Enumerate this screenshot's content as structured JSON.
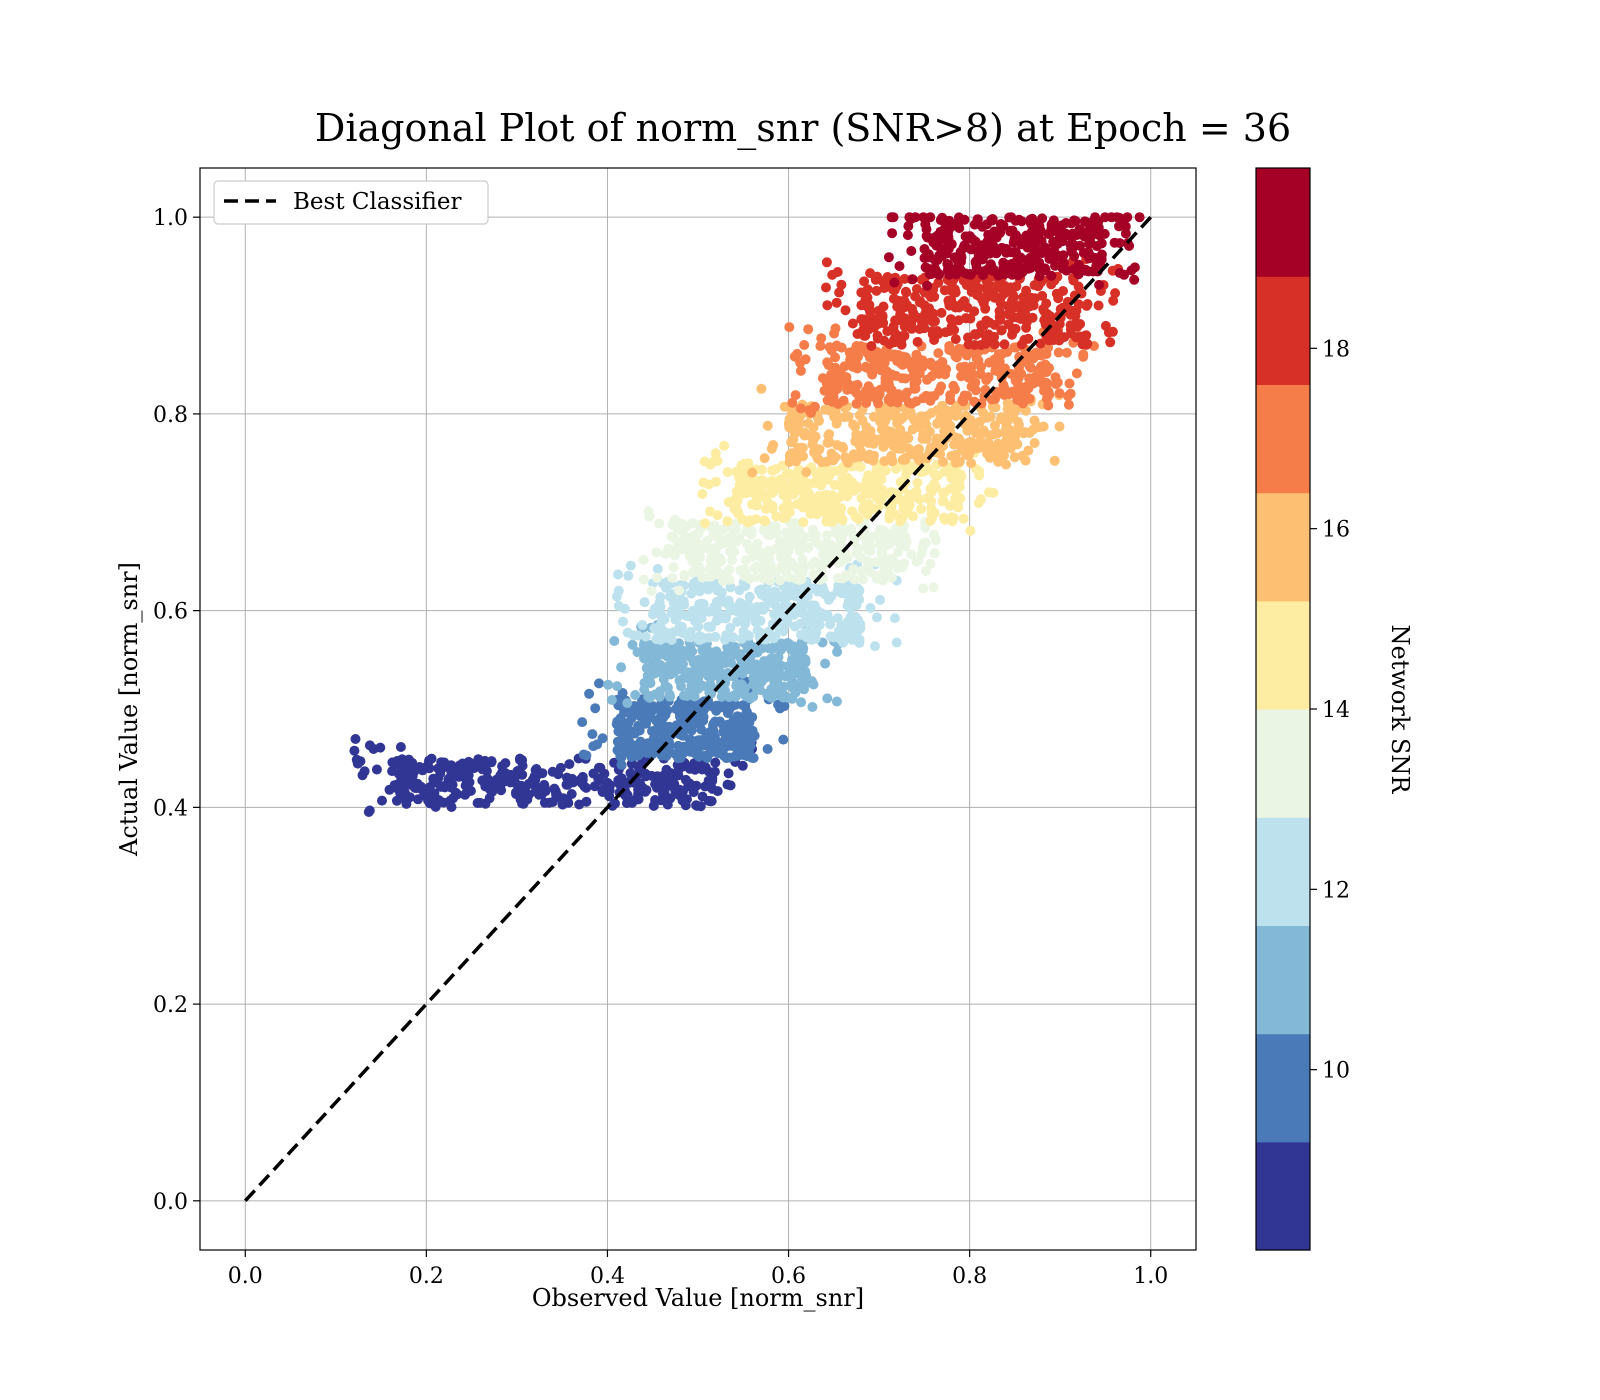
{
  "chart_data": {
    "type": "scatter",
    "title": "Diagonal Plot of norm_snr (SNR>8) at Epoch = 36",
    "xlabel": "Observed Value [norm_snr]",
    "ylabel": "Actual Value [norm_snr]",
    "xlim": [
      -0.05,
      1.05
    ],
    "ylim": [
      -0.05,
      1.05
    ],
    "x_ticks": [
      "0.0",
      "0.2",
      "0.4",
      "0.6",
      "0.8",
      "1.0"
    ],
    "y_ticks": [
      "0.0",
      "0.2",
      "0.4",
      "0.6",
      "0.8",
      "1.0"
    ],
    "x_tick_values": [
      0.0,
      0.2,
      0.4,
      0.6,
      0.8,
      1.0
    ],
    "y_tick_values": [
      0.0,
      0.2,
      0.4,
      0.6,
      0.8,
      1.0
    ],
    "grid": true,
    "legend": {
      "position": "upper-left",
      "entries": [
        "Best Classifier"
      ]
    },
    "reference_line": {
      "name": "Best Classifier",
      "style": "dashed",
      "color": "#000000",
      "from": [
        0.0,
        0.0
      ],
      "to": [
        1.0,
        1.0
      ]
    },
    "colorbar": {
      "label": "Network SNR",
      "range": [
        8,
        20
      ],
      "ticks": [
        "10",
        "12",
        "14",
        "16",
        "18"
      ],
      "tick_values": [
        10,
        12,
        14,
        16,
        18
      ],
      "bands": [
        {
          "snr": [
            8,
            9.2
          ],
          "color": "#313695"
        },
        {
          "snr": [
            9.2,
            10.4
          ],
          "color": "#4a7ab7"
        },
        {
          "snr": [
            10.4,
            11.6
          ],
          "color": "#83b8d7"
        },
        {
          "snr": [
            11.6,
            12.8
          ],
          "color": "#bee2ed"
        },
        {
          "snr": [
            12.8,
            14.0
          ],
          "color": "#eaf6e3"
        },
        {
          "snr": [
            14.0,
            15.2
          ],
          "color": "#fdeda2"
        },
        {
          "snr": [
            15.2,
            16.4
          ],
          "color": "#fdbf71"
        },
        {
          "snr": [
            16.4,
            17.6
          ],
          "color": "#f57d4a"
        },
        {
          "snr": [
            17.6,
            18.8
          ],
          "color": "#d73127"
        },
        {
          "snr": [
            18.8,
            20.0
          ],
          "color": "#a50026"
        }
      ]
    },
    "series": [
      {
        "band": 0,
        "y_range": [
          0.4,
          0.45
        ],
        "x_range": [
          0.12,
          0.56
        ],
        "color": "#313695"
      },
      {
        "band": 1,
        "y_range": [
          0.45,
          0.51
        ],
        "x_range": [
          0.37,
          0.6
        ],
        "color": "#4a7ab7"
      },
      {
        "band": 2,
        "y_range": [
          0.51,
          0.57
        ],
        "x_range": [
          0.4,
          0.66
        ],
        "color": "#83b8d7"
      },
      {
        "band": 3,
        "y_range": [
          0.57,
          0.63
        ],
        "x_range": [
          0.41,
          0.72
        ],
        "color": "#bee2ed"
      },
      {
        "band": 4,
        "y_range": [
          0.63,
          0.69
        ],
        "x_range": [
          0.43,
          0.77
        ],
        "color": "#eaf6e3"
      },
      {
        "band": 5,
        "y_range": [
          0.69,
          0.75
        ],
        "x_range": [
          0.5,
          0.83
        ],
        "color": "#fdeda2"
      },
      {
        "band": 6,
        "y_range": [
          0.75,
          0.81
        ],
        "x_range": [
          0.56,
          0.9
        ],
        "color": "#fdbf71"
      },
      {
        "band": 7,
        "y_range": [
          0.81,
          0.87
        ],
        "x_range": [
          0.6,
          0.94
        ],
        "color": "#f57d4a"
      },
      {
        "band": 8,
        "y_range": [
          0.87,
          0.94
        ],
        "x_range": [
          0.64,
          0.97
        ],
        "color": "#d73127"
      },
      {
        "band": 9,
        "y_range": [
          0.94,
          1.0
        ],
        "x_range": [
          0.71,
          0.99
        ],
        "color": "#a50026"
      }
    ]
  }
}
